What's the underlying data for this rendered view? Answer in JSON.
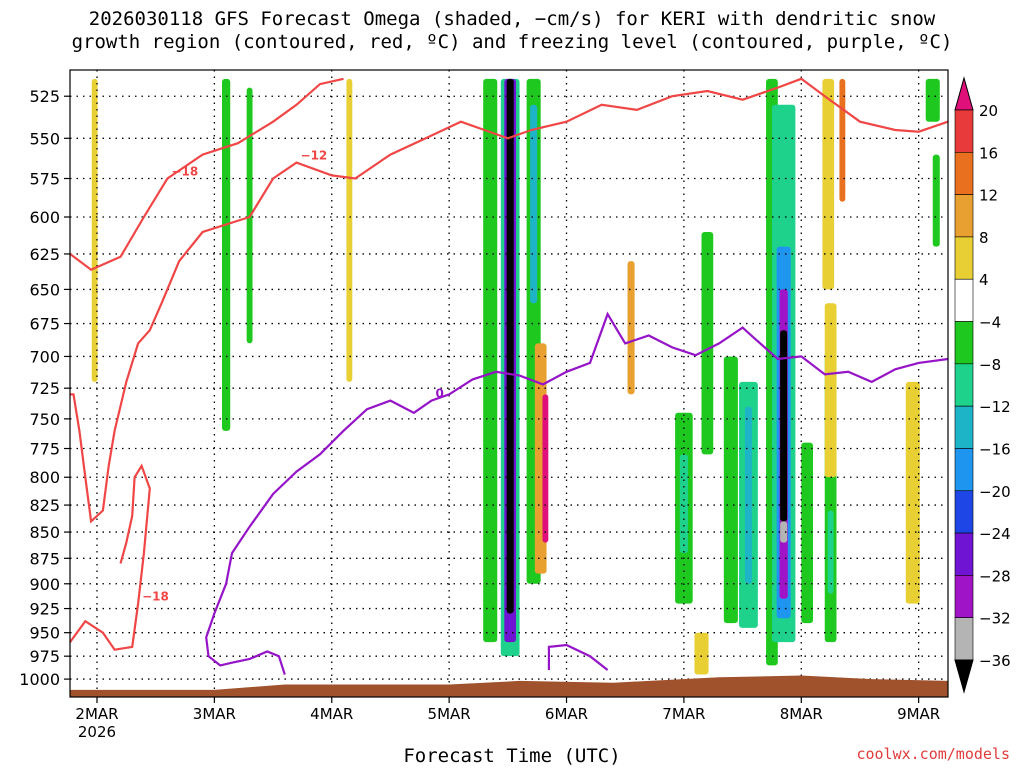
{
  "header": {
    "title_line1": "2026030118 GFS Forecast Omega (shaded, −cm/s) for KERI with dendritic snow",
    "title_line2": "growth region (contoured, red, ºC) and freezing level (contoured, purple, ºC)"
  },
  "footer": {
    "xlabel": "Forecast Time (UTC)",
    "credit": "coolwx.com/models"
  },
  "chart_data": {
    "type": "heatmap",
    "y_scale": "pressure (hPa, inverted, log)",
    "ylim": [
      1020,
      510
    ],
    "x_start_label": "2MAR 2026",
    "x_ticks": [
      {
        "label": "2MAR",
        "sub": "2026",
        "day": 0
      },
      {
        "label": "3MAR",
        "day": 1
      },
      {
        "label": "4MAR",
        "day": 2
      },
      {
        "label": "5MAR",
        "day": 3
      },
      {
        "label": "6MAR",
        "day": 4
      },
      {
        "label": "7MAR",
        "day": 5
      },
      {
        "label": "8MAR",
        "day": 6
      },
      {
        "label": "9MAR",
        "day": 7
      }
    ],
    "xlim_days": [
      -0.23,
      7.25
    ],
    "y_ticks": [
      525,
      550,
      575,
      600,
      625,
      650,
      675,
      700,
      725,
      750,
      775,
      800,
      825,
      850,
      875,
      900,
      925,
      950,
      975,
      1000
    ],
    "grid": true,
    "colorbar": {
      "labels": [
        "20",
        "16",
        "12",
        "8",
        "4",
        "−4",
        "−8",
        "−12",
        "−16",
        "−20",
        "−24",
        "−28",
        "−32",
        "−36"
      ],
      "colors": [
        "#e0107a",
        "#e83a3a",
        "#e8701e",
        "#e8a030",
        "#e8cf33",
        "#ffffff",
        "#1ec81e",
        "#1ed28c",
        "#1eb4c8",
        "#1e96f0",
        "#1e46e6",
        "#6e14d2",
        "#a014c8",
        "#b4b4b4",
        "#000000"
      ]
    },
    "omega_bands": [
      {
        "day": -0.02,
        "p_top": 515,
        "p_bottom": 720,
        "width": 0.05,
        "color": "#e8cf33"
      },
      {
        "day": 1.1,
        "p_top": 515,
        "p_bottom": 760,
        "width": 0.07,
        "color": "#1ec81e"
      },
      {
        "day": 1.3,
        "p_top": 520,
        "p_bottom": 690,
        "width": 0.05,
        "color": "#1ec81e"
      },
      {
        "day": 2.15,
        "p_top": 515,
        "p_bottom": 720,
        "width": 0.05,
        "color": "#e8cf33"
      },
      {
        "day": 3.35,
        "p_top": 515,
        "p_bottom": 960,
        "width": 0.12,
        "color": "#1ec81e"
      },
      {
        "day": 3.52,
        "p_top": 515,
        "p_bottom": 975,
        "width": 0.16,
        "color": "#1ed28c"
      },
      {
        "day": 3.52,
        "p_top": 515,
        "p_bottom": 960,
        "width": 0.1,
        "color": "#6e14d2"
      },
      {
        "day": 3.52,
        "p_top": 515,
        "p_bottom": 930,
        "width": 0.06,
        "color": "#000000"
      },
      {
        "day": 3.72,
        "p_top": 515,
        "p_bottom": 900,
        "width": 0.12,
        "color": "#1ec81e"
      },
      {
        "day": 3.78,
        "p_top": 690,
        "p_bottom": 890,
        "width": 0.1,
        "color": "#e8a030"
      },
      {
        "day": 3.82,
        "p_top": 730,
        "p_bottom": 860,
        "width": 0.05,
        "color": "#e0107a"
      },
      {
        "day": 3.72,
        "p_top": 530,
        "p_bottom": 660,
        "width": 0.06,
        "color": "#1eb4c8"
      },
      {
        "day": 4.55,
        "p_top": 630,
        "p_bottom": 730,
        "width": 0.06,
        "color": "#e8a030"
      },
      {
        "day": 5.0,
        "p_top": 745,
        "p_bottom": 920,
        "width": 0.15,
        "color": "#1ec81e"
      },
      {
        "day": 5.0,
        "p_top": 780,
        "p_bottom": 870,
        "width": 0.07,
        "color": "#1ed28c"
      },
      {
        "day": 5.2,
        "p_top": 610,
        "p_bottom": 780,
        "width": 0.1,
        "color": "#1ec81e"
      },
      {
        "day": 5.4,
        "p_top": 700,
        "p_bottom": 940,
        "width": 0.12,
        "color": "#1ec81e"
      },
      {
        "day": 5.55,
        "p_top": 720,
        "p_bottom": 945,
        "width": 0.16,
        "color": "#1ed28c"
      },
      {
        "day": 5.55,
        "p_top": 740,
        "p_bottom": 900,
        "width": 0.06,
        "color": "#1eb4c8"
      },
      {
        "day": 5.15,
        "p_top": 950,
        "p_bottom": 995,
        "width": 0.12,
        "color": "#e8cf33"
      },
      {
        "day": 5.75,
        "p_top": 515,
        "p_bottom": 985,
        "width": 0.1,
        "color": "#1ec81e"
      },
      {
        "day": 5.85,
        "p_top": 530,
        "p_bottom": 960,
        "width": 0.2,
        "color": "#1ed28c"
      },
      {
        "day": 5.85,
        "p_top": 620,
        "p_bottom": 935,
        "width": 0.12,
        "color": "#1e96f0"
      },
      {
        "day": 5.85,
        "p_top": 650,
        "p_bottom": 915,
        "width": 0.07,
        "color": "#a014c8"
      },
      {
        "day": 5.85,
        "p_top": 680,
        "p_bottom": 840,
        "width": 0.06,
        "color": "#000000"
      },
      {
        "day": 5.85,
        "p_top": 840,
        "p_bottom": 860,
        "width": 0.06,
        "color": "#b4b4b4"
      },
      {
        "day": 6.05,
        "p_top": 770,
        "p_bottom": 940,
        "width": 0.1,
        "color": "#1ec81e"
      },
      {
        "day": 6.25,
        "p_top": 700,
        "p_bottom": 960,
        "width": 0.1,
        "color": "#1ec81e"
      },
      {
        "day": 6.25,
        "p_top": 830,
        "p_bottom": 910,
        "width": 0.05,
        "color": "#1ed28c"
      },
      {
        "day": 6.23,
        "p_top": 515,
        "p_bottom": 650,
        "width": 0.1,
        "color": "#e8cf33"
      },
      {
        "day": 6.35,
        "p_top": 515,
        "p_bottom": 590,
        "width": 0.05,
        "color": "#e8701e"
      },
      {
        "day": 6.25,
        "p_top": 660,
        "p_bottom": 800,
        "width": 0.1,
        "color": "#e8cf33"
      },
      {
        "day": 6.95,
        "p_top": 720,
        "p_bottom": 920,
        "width": 0.12,
        "color": "#e8cf33"
      },
      {
        "day": 7.12,
        "p_top": 515,
        "p_bottom": 540,
        "width": 0.12,
        "color": "#1ec81e"
      },
      {
        "day": 7.15,
        "p_top": 560,
        "p_bottom": 620,
        "width": 0.06,
        "color": "#1ec81e"
      }
    ],
    "dendritic_contours": [
      {
        "label": "−18",
        "points": [
          [
            -0.23,
            625
          ],
          [
            -0.05,
            636
          ],
          [
            0.2,
            627
          ],
          [
            0.4,
            600
          ],
          [
            0.6,
            575
          ],
          [
            0.9,
            560
          ],
          [
            1.2,
            553
          ],
          [
            1.5,
            540
          ],
          [
            1.7,
            530
          ],
          [
            1.9,
            518
          ],
          [
            2.1,
            515
          ]
        ]
      },
      {
        "label": "−12",
        "points": [
          [
            -0.23,
            730
          ],
          [
            -0.2,
            730
          ],
          [
            -0.15,
            760
          ],
          [
            -0.1,
            800
          ],
          [
            -0.05,
            840
          ],
          [
            0.05,
            830
          ],
          [
            0.1,
            790
          ],
          [
            0.15,
            760
          ],
          [
            0.25,
            720
          ],
          [
            0.35,
            690
          ],
          [
            0.45,
            680
          ],
          [
            0.55,
            660
          ],
          [
            0.7,
            630
          ],
          [
            0.9,
            610
          ],
          [
            1.1,
            605
          ],
          [
            1.3,
            600
          ],
          [
            1.5,
            575
          ],
          [
            1.7,
            565
          ],
          [
            2.0,
            573
          ],
          [
            2.2,
            575
          ],
          [
            2.5,
            560
          ],
          [
            2.8,
            550
          ],
          [
            3.1,
            540
          ],
          [
            3.3,
            545
          ],
          [
            3.5,
            550
          ],
          [
            3.7,
            545
          ],
          [
            4.0,
            540
          ],
          [
            4.3,
            530
          ],
          [
            4.6,
            533
          ],
          [
            4.9,
            525
          ],
          [
            5.2,
            522
          ],
          [
            5.5,
            527
          ],
          [
            5.8,
            520
          ],
          [
            6.0,
            515
          ],
          [
            6.2,
            525
          ],
          [
            6.5,
            540
          ],
          [
            6.8,
            545
          ],
          [
            7.0,
            546
          ],
          [
            7.25,
            540
          ]
        ]
      },
      {
        "label": "−18",
        "points": [
          [
            -0.23,
            960
          ],
          [
            -0.1,
            938
          ],
          [
            0.05,
            950
          ],
          [
            0.15,
            968
          ],
          [
            0.3,
            965
          ],
          [
            0.35,
            920
          ],
          [
            0.4,
            870
          ],
          [
            0.45,
            810
          ],
          [
            0.38,
            790
          ],
          [
            0.32,
            800
          ],
          [
            0.3,
            835
          ],
          [
            0.25,
            860
          ],
          [
            0.2,
            880
          ]
        ]
      }
    ],
    "freezing_contours": [
      {
        "label": "0",
        "points": [
          [
            1.6,
            995
          ],
          [
            1.55,
            975
          ],
          [
            1.45,
            970
          ],
          [
            1.3,
            978
          ],
          [
            1.15,
            982
          ],
          [
            1.05,
            985
          ],
          [
            0.95,
            975
          ],
          [
            0.93,
            955
          ],
          [
            1.0,
            930
          ],
          [
            1.1,
            900
          ],
          [
            1.15,
            870
          ],
          [
            1.3,
            845
          ],
          [
            1.5,
            815
          ],
          [
            1.7,
            795
          ],
          [
            1.9,
            780
          ],
          [
            2.1,
            760
          ],
          [
            2.3,
            742
          ],
          [
            2.5,
            735
          ],
          [
            2.7,
            745
          ],
          [
            2.85,
            735
          ],
          [
            3.0,
            730
          ],
          [
            3.2,
            718
          ],
          [
            3.4,
            712
          ],
          [
            3.6,
            715
          ],
          [
            3.8,
            722
          ],
          [
            4.0,
            712
          ],
          [
            4.2,
            705
          ],
          [
            4.35,
            668
          ],
          [
            4.5,
            690
          ],
          [
            4.7,
            684
          ],
          [
            4.9,
            693
          ],
          [
            5.1,
            699
          ],
          [
            5.3,
            690
          ],
          [
            5.5,
            678
          ],
          [
            5.6,
            686
          ],
          [
            5.8,
            702
          ],
          [
            6.0,
            700
          ],
          [
            6.2,
            714
          ],
          [
            6.4,
            712
          ],
          [
            6.6,
            720
          ],
          [
            6.8,
            710
          ],
          [
            7.0,
            705
          ],
          [
            7.25,
            702
          ]
        ]
      },
      {
        "label": "",
        "points": [
          [
            3.85,
            990
          ],
          [
            3.85,
            965
          ],
          [
            4.0,
            963
          ],
          [
            4.2,
            975
          ],
          [
            4.35,
            990
          ]
        ]
      }
    ]
  }
}
